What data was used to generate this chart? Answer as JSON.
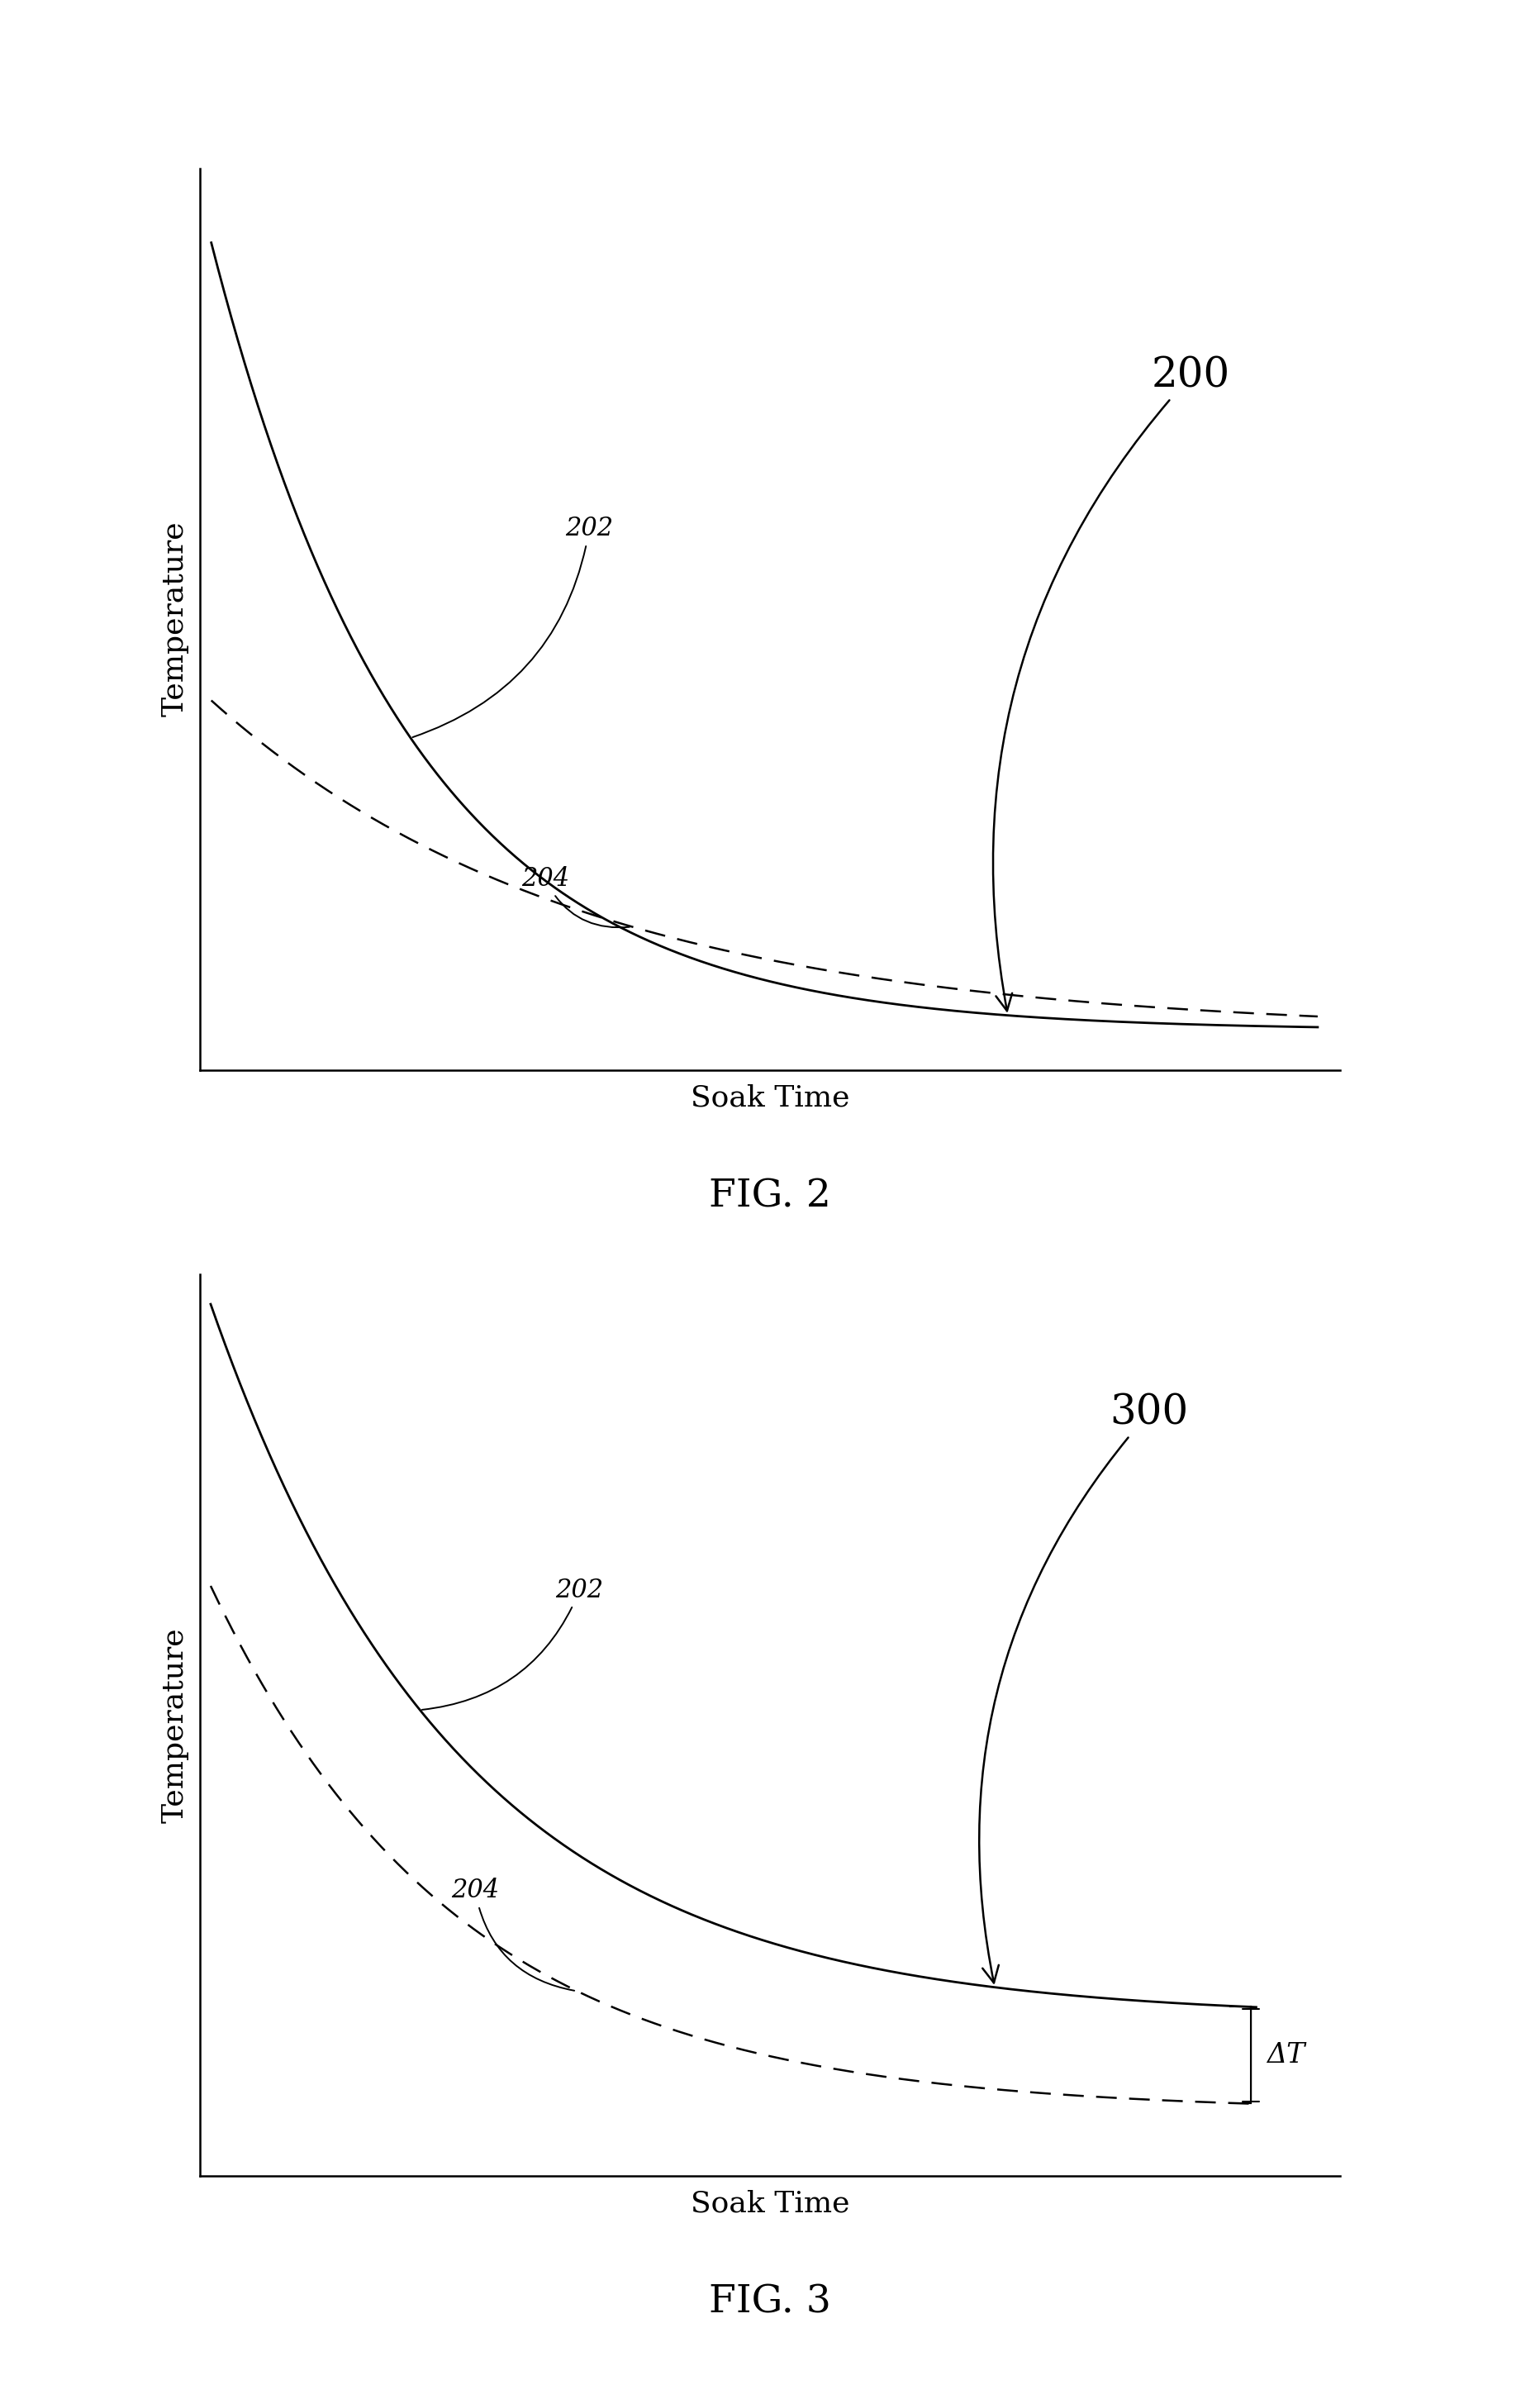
{
  "fig2": {
    "label": "FIG. 2",
    "figure_label": "200",
    "line202_label": "202",
    "line204_label": "204",
    "xlabel": "Soak Time",
    "ylabel": "Temperature"
  },
  "fig3": {
    "label": "FIG. 3",
    "figure_label": "300",
    "line202_label": "202",
    "line204_label": "204",
    "delta_label": "ΔT",
    "xlabel": "Soak Time",
    "ylabel": "Temperature"
  },
  "bg_color": "#ffffff",
  "line_color": "#000000",
  "font_size_label": 26,
  "font_size_annotation": 22,
  "font_size_fig_label": 34,
  "font_size_figure_number": 36
}
